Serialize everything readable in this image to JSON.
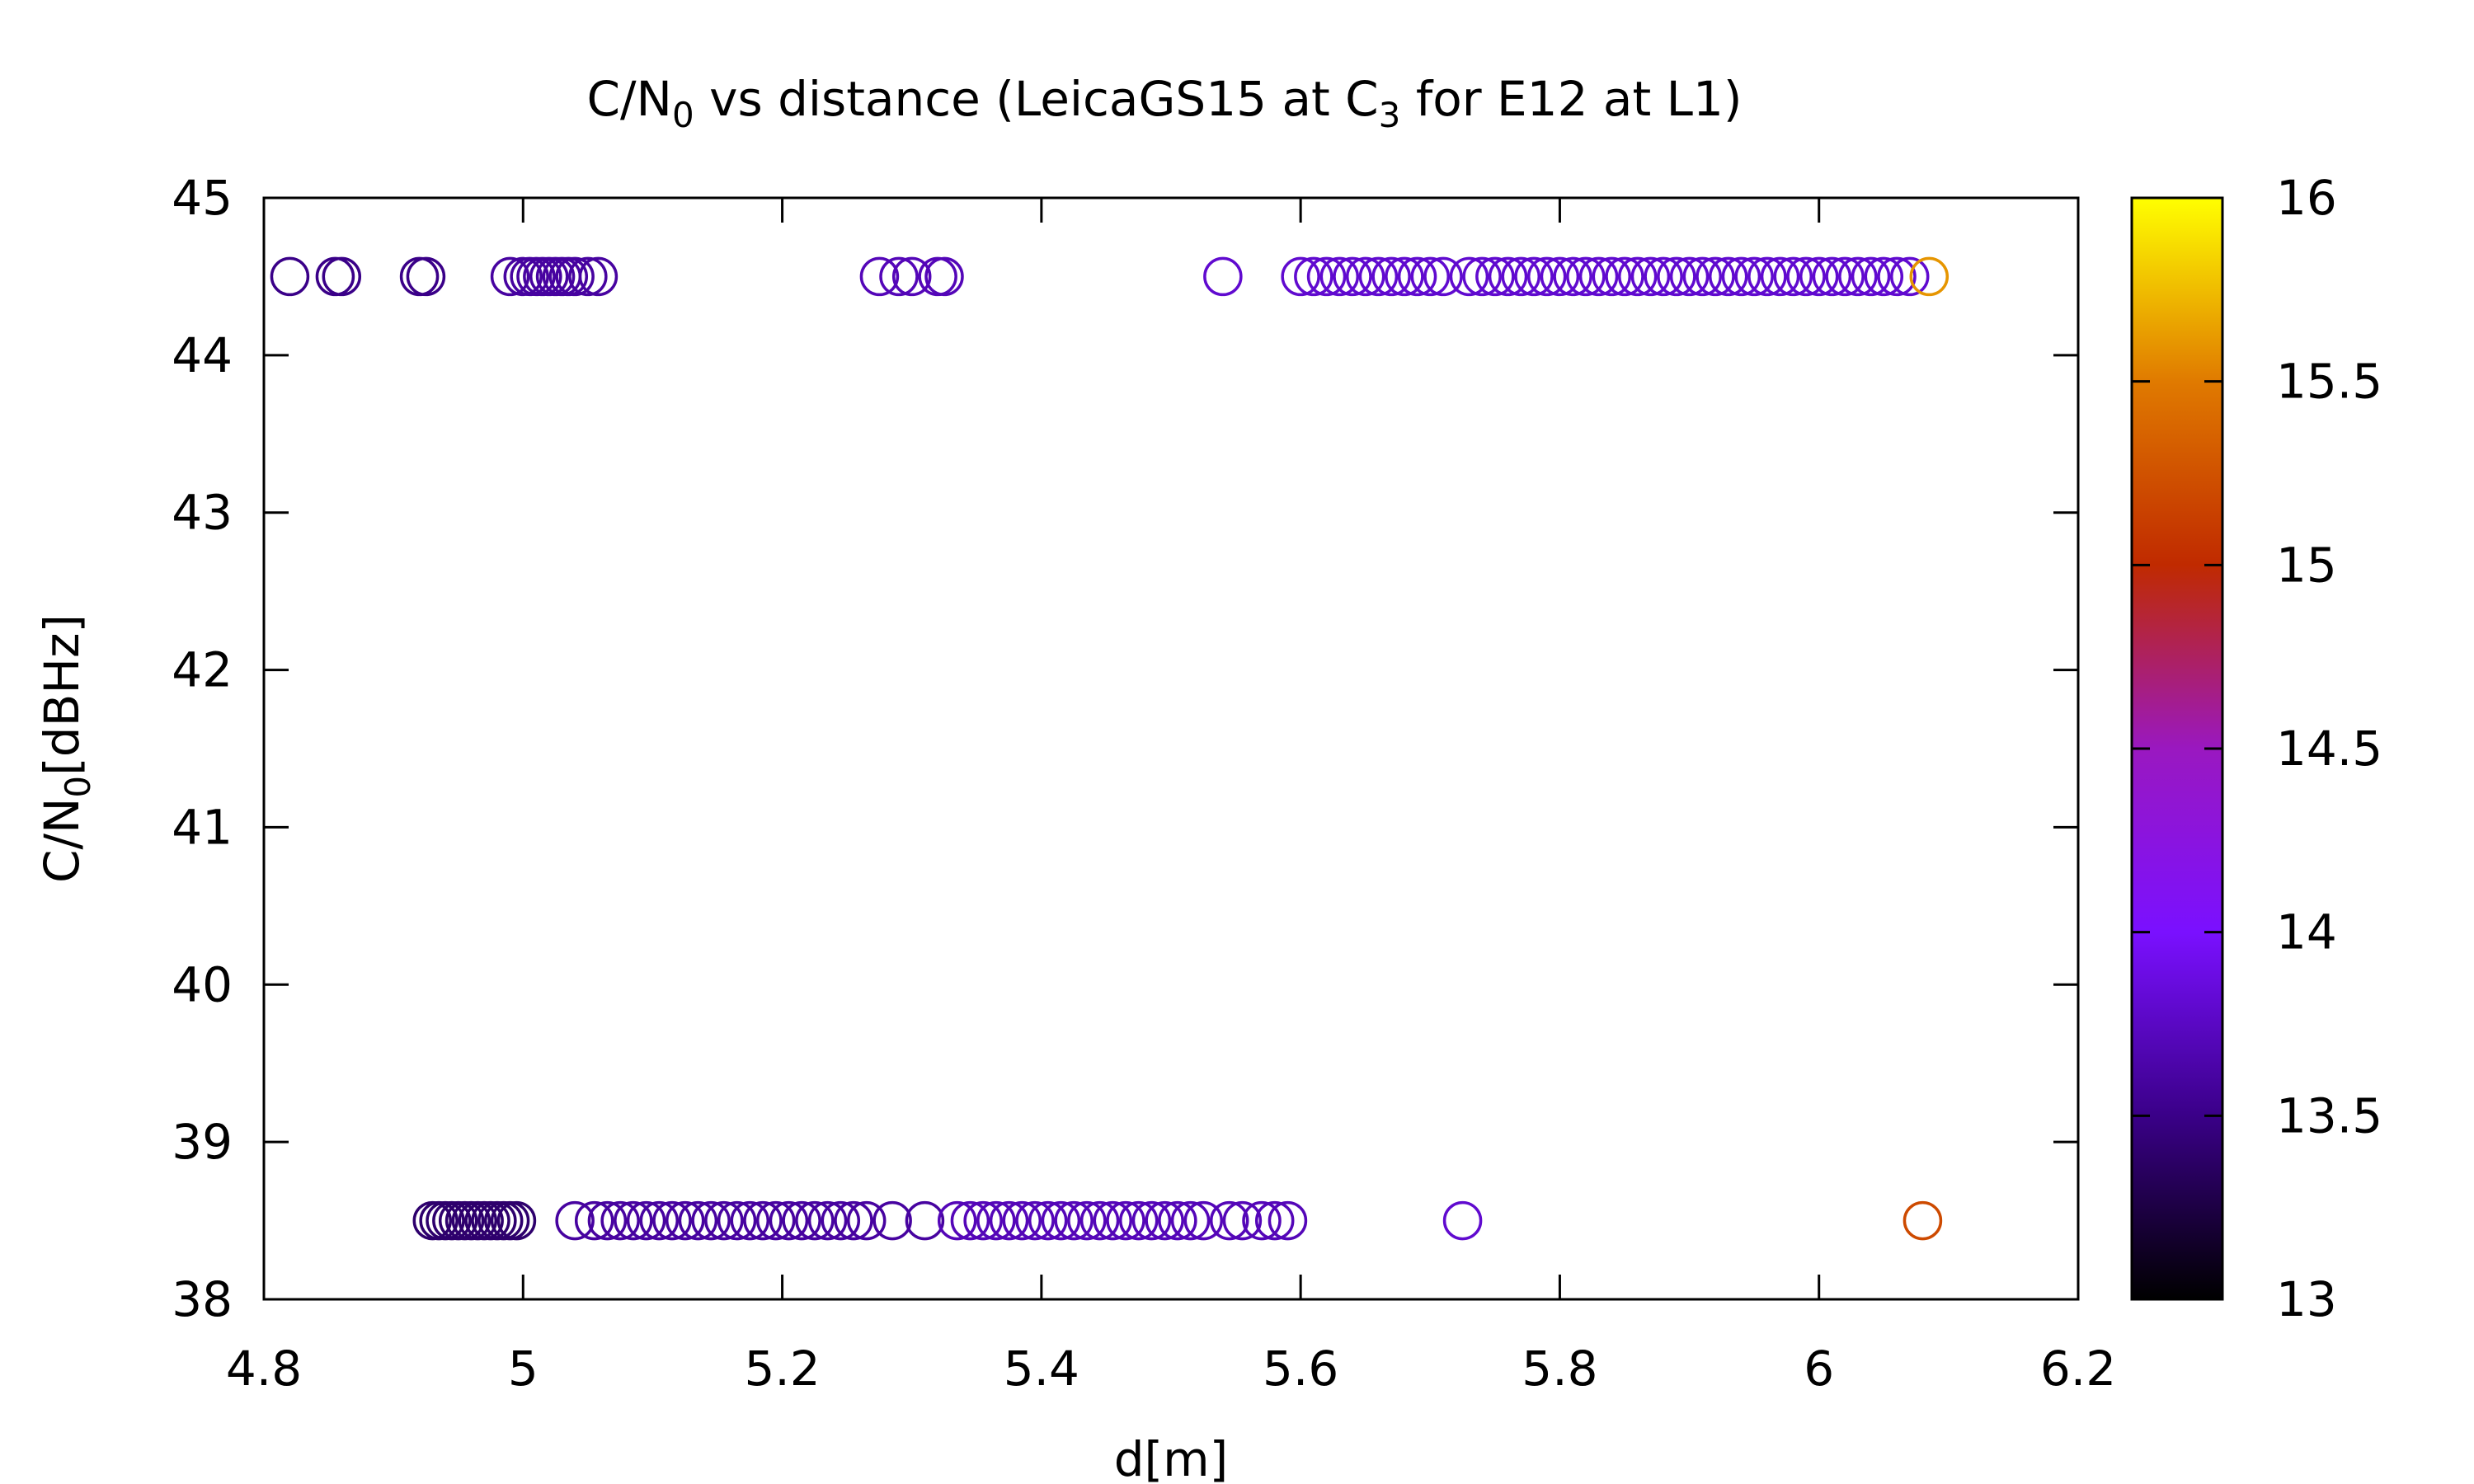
{
  "chart_data": {
    "type": "scatter",
    "title": {
      "pre": "C/N",
      "sub0": "0",
      "mid": " vs distance (LeicaGS15 at C",
      "sub1": "3",
      "post": " for E12 at L1)"
    },
    "xlabel": "d[m]",
    "ylabel": {
      "pre": "C/N",
      "sub": "0",
      "post": "[dBHz]"
    },
    "xlim": [
      4.8,
      6.2
    ],
    "ylim": [
      38,
      45
    ],
    "xticks": [
      "4.8",
      "5",
      "5.2",
      "5.4",
      "5.6",
      "5.8",
      "6",
      "6.2"
    ],
    "yticks": [
      "38",
      "39",
      "40",
      "41",
      "42",
      "43",
      "44",
      "45"
    ],
    "colorbar": {
      "range": [
        13,
        16
      ],
      "ticks": [
        "13",
        "13.5",
        "14",
        "14.5",
        "15",
        "15.5",
        "16"
      ],
      "palette": [
        "#000000",
        "#3a0088",
        "#7a10ff",
        "#9a18c0",
        "#c02a00",
        "#e07a00",
        "#ffff00"
      ]
    },
    "grid": false,
    "legend": "none",
    "marker": "open-circle",
    "series": [
      {
        "points": [
          [
            4.82,
            44.5,
            13.5
          ],
          [
            4.855,
            44.5,
            13.5
          ],
          [
            4.86,
            44.5,
            13.5
          ],
          [
            4.92,
            44.5,
            13.5
          ],
          [
            4.925,
            44.5,
            13.5
          ],
          [
            4.99,
            44.5,
            13.6
          ],
          [
            5.0,
            44.5,
            13.6
          ],
          [
            5.005,
            44.5,
            13.6
          ],
          [
            5.01,
            44.5,
            13.6
          ],
          [
            5.015,
            44.5,
            13.6
          ],
          [
            5.02,
            44.5,
            13.6
          ],
          [
            5.025,
            44.5,
            13.6
          ],
          [
            5.03,
            44.5,
            13.6
          ],
          [
            5.035,
            44.5,
            13.6
          ],
          [
            5.04,
            44.5,
            13.6
          ],
          [
            5.05,
            44.5,
            13.6
          ],
          [
            5.058,
            44.5,
            13.6
          ],
          [
            5.275,
            44.5,
            13.7
          ],
          [
            5.29,
            44.5,
            13.7
          ],
          [
            5.3,
            44.5,
            13.7
          ],
          [
            5.32,
            44.5,
            13.7
          ],
          [
            5.325,
            44.5,
            13.7
          ],
          [
            5.54,
            44.5,
            13.8
          ],
          [
            5.6,
            44.5,
            13.8
          ],
          [
            5.61,
            44.5,
            13.8
          ],
          [
            5.62,
            44.5,
            13.8
          ],
          [
            5.63,
            44.5,
            13.8
          ],
          [
            5.64,
            44.5,
            13.8
          ],
          [
            5.65,
            44.5,
            13.8
          ],
          [
            5.66,
            44.5,
            13.8
          ],
          [
            5.67,
            44.5,
            13.8
          ],
          [
            5.68,
            44.5,
            13.8
          ],
          [
            5.69,
            44.5,
            13.8
          ],
          [
            5.7,
            44.5,
            13.8
          ],
          [
            5.71,
            44.5,
            13.8
          ],
          [
            5.73,
            44.5,
            13.8
          ],
          [
            5.74,
            44.5,
            13.8
          ],
          [
            5.75,
            44.5,
            13.8
          ],
          [
            5.76,
            44.5,
            13.8
          ],
          [
            5.77,
            44.5,
            13.8
          ],
          [
            5.78,
            44.5,
            13.8
          ],
          [
            5.79,
            44.5,
            13.8
          ],
          [
            5.8,
            44.5,
            13.8
          ],
          [
            5.81,
            44.5,
            13.8
          ],
          [
            5.82,
            44.5,
            13.8
          ],
          [
            5.83,
            44.5,
            13.8
          ],
          [
            5.84,
            44.5,
            13.8
          ],
          [
            5.85,
            44.5,
            13.8
          ],
          [
            5.86,
            44.5,
            13.8
          ],
          [
            5.87,
            44.5,
            13.8
          ],
          [
            5.88,
            44.5,
            13.8
          ],
          [
            5.89,
            44.5,
            13.8
          ],
          [
            5.9,
            44.5,
            13.8
          ],
          [
            5.91,
            44.5,
            13.8
          ],
          [
            5.92,
            44.5,
            13.8
          ],
          [
            5.93,
            44.5,
            13.8
          ],
          [
            5.94,
            44.5,
            13.8
          ],
          [
            5.95,
            44.5,
            13.8
          ],
          [
            5.96,
            44.5,
            13.8
          ],
          [
            5.97,
            44.5,
            13.8
          ],
          [
            5.98,
            44.5,
            13.8
          ],
          [
            5.99,
            44.5,
            13.8
          ],
          [
            6.0,
            44.5,
            13.8
          ],
          [
            6.01,
            44.5,
            13.8
          ],
          [
            6.02,
            44.5,
            13.8
          ],
          [
            6.03,
            44.5,
            13.8
          ],
          [
            6.04,
            44.5,
            13.8
          ],
          [
            6.05,
            44.5,
            13.8
          ],
          [
            6.06,
            44.5,
            13.8
          ],
          [
            6.07,
            44.5,
            13.8
          ],
          [
            6.085,
            44.5,
            15.6
          ],
          [
            4.93,
            38.5,
            13.4
          ],
          [
            4.935,
            38.5,
            13.4
          ],
          [
            4.94,
            38.5,
            13.4
          ],
          [
            4.945,
            38.5,
            13.4
          ],
          [
            4.95,
            38.5,
            13.4
          ],
          [
            4.955,
            38.5,
            13.4
          ],
          [
            4.96,
            38.5,
            13.4
          ],
          [
            4.965,
            38.5,
            13.4
          ],
          [
            4.97,
            38.5,
            13.4
          ],
          [
            4.975,
            38.5,
            13.4
          ],
          [
            4.98,
            38.5,
            13.4
          ],
          [
            4.985,
            38.5,
            13.4
          ],
          [
            4.99,
            38.5,
            13.4
          ],
          [
            4.995,
            38.5,
            13.4
          ],
          [
            5.04,
            38.5,
            13.6
          ],
          [
            5.055,
            38.5,
            13.6
          ],
          [
            5.065,
            38.5,
            13.6
          ],
          [
            5.075,
            38.5,
            13.6
          ],
          [
            5.085,
            38.5,
            13.6
          ],
          [
            5.095,
            38.5,
            13.6
          ],
          [
            5.105,
            38.5,
            13.6
          ],
          [
            5.115,
            38.5,
            13.6
          ],
          [
            5.125,
            38.5,
            13.6
          ],
          [
            5.135,
            38.5,
            13.6
          ],
          [
            5.145,
            38.5,
            13.6
          ],
          [
            5.155,
            38.5,
            13.6
          ],
          [
            5.165,
            38.5,
            13.6
          ],
          [
            5.175,
            38.5,
            13.6
          ],
          [
            5.185,
            38.5,
            13.6
          ],
          [
            5.195,
            38.5,
            13.6
          ],
          [
            5.205,
            38.5,
            13.6
          ],
          [
            5.215,
            38.5,
            13.6
          ],
          [
            5.225,
            38.5,
            13.6
          ],
          [
            5.235,
            38.5,
            13.6
          ],
          [
            5.245,
            38.5,
            13.6
          ],
          [
            5.255,
            38.5,
            13.6
          ],
          [
            5.265,
            38.5,
            13.6
          ],
          [
            5.285,
            38.5,
            13.6
          ],
          [
            5.31,
            38.5,
            13.6
          ],
          [
            5.335,
            38.5,
            13.7
          ],
          [
            5.345,
            38.5,
            13.7
          ],
          [
            5.355,
            38.5,
            13.7
          ],
          [
            5.365,
            38.5,
            13.7
          ],
          [
            5.375,
            38.5,
            13.7
          ],
          [
            5.385,
            38.5,
            13.7
          ],
          [
            5.395,
            38.5,
            13.7
          ],
          [
            5.405,
            38.5,
            13.7
          ],
          [
            5.415,
            38.5,
            13.7
          ],
          [
            5.425,
            38.5,
            13.7
          ],
          [
            5.435,
            38.5,
            13.7
          ],
          [
            5.445,
            38.5,
            13.7
          ],
          [
            5.455,
            38.5,
            13.7
          ],
          [
            5.465,
            38.5,
            13.7
          ],
          [
            5.475,
            38.5,
            13.7
          ],
          [
            5.485,
            38.5,
            13.7
          ],
          [
            5.495,
            38.5,
            13.7
          ],
          [
            5.505,
            38.5,
            13.7
          ],
          [
            5.515,
            38.5,
            13.7
          ],
          [
            5.525,
            38.5,
            13.7
          ],
          [
            5.545,
            38.5,
            13.7
          ],
          [
            5.555,
            38.5,
            13.7
          ],
          [
            5.57,
            38.5,
            13.7
          ],
          [
            5.58,
            38.5,
            13.7
          ],
          [
            5.59,
            38.5,
            13.7
          ],
          [
            5.725,
            38.5,
            13.8
          ],
          [
            6.08,
            38.5,
            15.2
          ]
        ]
      }
    ]
  }
}
